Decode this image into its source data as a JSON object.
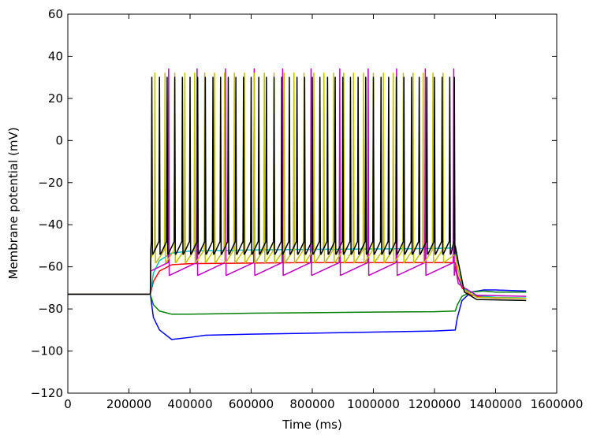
{
  "chart_data": {
    "type": "line",
    "xlabel": "Time (ms)",
    "ylabel": "Membrane potential (mV)",
    "xlim": [
      0,
      1600000
    ],
    "ylim": [
      -120,
      60
    ],
    "xticks": [
      0,
      200000,
      400000,
      600000,
      800000,
      1000000,
      1200000,
      1400000,
      1600000
    ],
    "xtick_labels": [
      "0",
      "200000",
      "400000",
      "600000",
      "800000",
      "1000000",
      "1200000",
      "1400000",
      "1600000"
    ],
    "yticks": [
      -120,
      -100,
      -80,
      -60,
      -40,
      -20,
      0,
      20,
      40,
      60
    ],
    "ytick_labels": [
      "−120",
      "−100",
      "−80",
      "−60",
      "−40",
      "−20",
      "0",
      "20",
      "40",
      "60"
    ],
    "grid": false,
    "legend": "none",
    "stimulus": {
      "onset": 270000,
      "offset": 1268000,
      "end": 1500000
    },
    "series": [
      {
        "color": "#0000ff",
        "kind": "hyperpolarizing",
        "x": [
          0,
          270000,
          280000,
          300000,
          340000,
          400000,
          450000,
          600000,
          800000,
          1000000,
          1200000,
          1268000,
          1275000,
          1290000,
          1320000,
          1360000,
          1400000,
          1500000
        ],
        "y": [
          -73,
          -73,
          -84,
          -90,
          -94.5,
          -93.5,
          -92.5,
          -92,
          -91.5,
          -91,
          -90.5,
          -90,
          -84,
          -76,
          -72,
          -71,
          -71,
          -71.5
        ]
      },
      {
        "color": "#008000",
        "kind": "hyperpolarizing",
        "x": [
          0,
          270000,
          280000,
          300000,
          340000,
          400000,
          600000,
          800000,
          1000000,
          1200000,
          1268000,
          1275000,
          1290000,
          1320000,
          1360000,
          1400000,
          1500000
        ],
        "y": [
          -73,
          -73,
          -78,
          -81,
          -82.5,
          -82.5,
          -82,
          -81.8,
          -81.5,
          -81.3,
          -81,
          -78,
          -74,
          -72,
          -71.5,
          -72,
          -72
        ]
      },
      {
        "color": "#ff0000",
        "kind": "subthreshold",
        "x": [
          0,
          270000,
          280000,
          300000,
          340000,
          400000,
          600000,
          800000,
          1000000,
          1200000,
          1268000,
          1275000,
          1290000,
          1320000,
          1360000,
          1400000,
          1500000
        ],
        "y": [
          -73,
          -73,
          -67,
          -62,
          -59,
          -58.5,
          -58.2,
          -58,
          -58,
          -58,
          -58,
          -64,
          -70,
          -73.5,
          -74.5,
          -74.8,
          -75
        ]
      },
      {
        "color": "#00bfbf",
        "kind": "subthreshold",
        "x": [
          0,
          270000,
          280000,
          300000,
          340000,
          400000,
          600000,
          800000,
          1000000,
          1200000,
          1268000,
          1275000,
          1290000,
          1320000,
          1360000,
          1400000,
          1500000
        ],
        "y": [
          -73,
          -73,
          -63,
          -57,
          -53.5,
          -52.5,
          -52,
          -51.7,
          -51.5,
          -51.3,
          -51,
          -60,
          -69,
          -73,
          -74,
          -74.5,
          -74.8
        ]
      },
      {
        "color": "#bf00bf",
        "kind": "spiking",
        "baseline": -73,
        "plateau": -58,
        "peak": 34,
        "spike_times": [
          330000,
          423000,
          516000,
          610000,
          703000,
          796000,
          890000,
          983000,
          1076000,
          1170000,
          1263000
        ],
        "after_end": -74
      },
      {
        "color": "#bfbf00",
        "kind": "spiking",
        "baseline": -73,
        "plateau": -52,
        "peak": 32,
        "spike_times": [
          285000,
          318000,
          350000,
          383000,
          415000,
          448000,
          480000,
          513000,
          545000,
          578000,
          610000,
          643000,
          675000,
          708000,
          740000,
          773000,
          805000,
          838000,
          870000,
          903000,
          935000,
          968000,
          1000000,
          1033000,
          1065000,
          1098000,
          1130000,
          1163000,
          1195000,
          1228000
        ],
        "after_end": -75
      },
      {
        "color": "#000000",
        "kind": "spiking",
        "baseline": -73,
        "plateau": -48,
        "peak": 30,
        "spike_times": [
          275000,
          300000,
          325000,
          350000,
          375000,
          400000,
          425000,
          450000,
          475000,
          500000,
          525000,
          550000,
          575000,
          600000,
          625000,
          650000,
          675000,
          700000,
          725000,
          750000,
          775000,
          800000,
          825000,
          850000,
          875000,
          900000,
          925000,
          950000,
          975000,
          1000000,
          1025000,
          1050000,
          1075000,
          1100000,
          1125000,
          1150000,
          1175000,
          1200000,
          1225000,
          1250000,
          1265000
        ],
        "after_end": -76
      }
    ]
  }
}
